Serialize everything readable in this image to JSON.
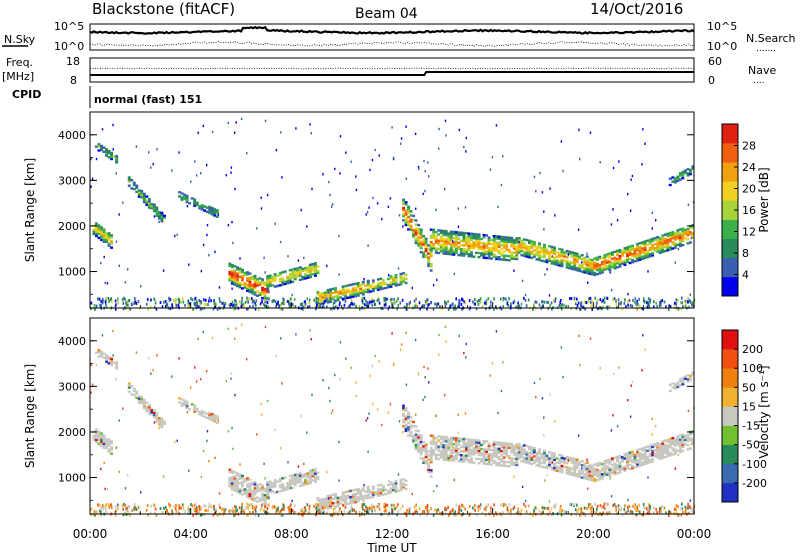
{
  "header": {
    "title": "Blackstone (fitACF)",
    "beam": "Beam 04",
    "date": "14/Oct/2016"
  },
  "noise_panel": {
    "left_label": "N.Sky",
    "right_label": "N.Search",
    "left_ticks": [
      "10^5",
      "10^0"
    ],
    "right_ticks": [
      "10^5",
      "10^0"
    ],
    "right_legend_glyph": "......."
  },
  "freq_panel": {
    "left_label_line1": "Freq.",
    "left_label_line2": "[MHz]",
    "right_label": "Nave",
    "left_ticks": [
      "18",
      "8"
    ],
    "right_ticks": [
      "60",
      "0"
    ],
    "right_legend_glyph": "...."
  },
  "cpid_panel": {
    "label": "CPID",
    "value": "normal (fast) 151"
  },
  "chart_data": [
    {
      "type": "heatmap",
      "name": "power",
      "ylabel": "Slant Range [km]",
      "yticks": [
        "4000",
        "3000",
        "2000",
        "1000"
      ],
      "ytick_values": [
        4000,
        3000,
        2000,
        1000
      ],
      "ylim": [
        200,
        4500
      ],
      "xlim_hours": [
        0,
        24
      ],
      "colorbar": {
        "label": "Power [dB]",
        "ticks": [
          "28",
          "24",
          "20",
          "16",
          "12",
          "8",
          "4"
        ],
        "colors": [
          "#0000ee",
          "#3a5fb0",
          "#2a8a5a",
          "#3cb04a",
          "#a8d43a",
          "#f0d020",
          "#f0a010",
          "#f06010",
          "#e02010"
        ]
      }
    },
    {
      "type": "heatmap",
      "name": "velocity",
      "ylabel": "Slant Range [km]",
      "yticks": [
        "4000",
        "3000",
        "2000",
        "1000"
      ],
      "ytick_values": [
        4000,
        3000,
        2000,
        1000
      ],
      "ylim": [
        200,
        4500
      ],
      "xlim_hours": [
        0,
        24
      ],
      "colorbar": {
        "label": "Velocity [m s⁻¹]",
        "ticks": [
          "200",
          "100",
          "50",
          "15",
          "-15",
          "-50",
          "-100",
          "-200"
        ],
        "colors": [
          "#2030c0",
          "#3a6ab0",
          "#2a8a5a",
          "#70c030",
          "#c8c8c0",
          "#f0b030",
          "#f08010",
          "#f05010",
          "#e01010"
        ]
      }
    }
  ],
  "xaxis": {
    "label": "Time UT",
    "ticks": [
      "00:00",
      "04:00",
      "08:00",
      "12:00",
      "16:00",
      "20:00",
      "00:00"
    ],
    "tick_hours": [
      0,
      4,
      8,
      12,
      16,
      20,
      24
    ]
  }
}
